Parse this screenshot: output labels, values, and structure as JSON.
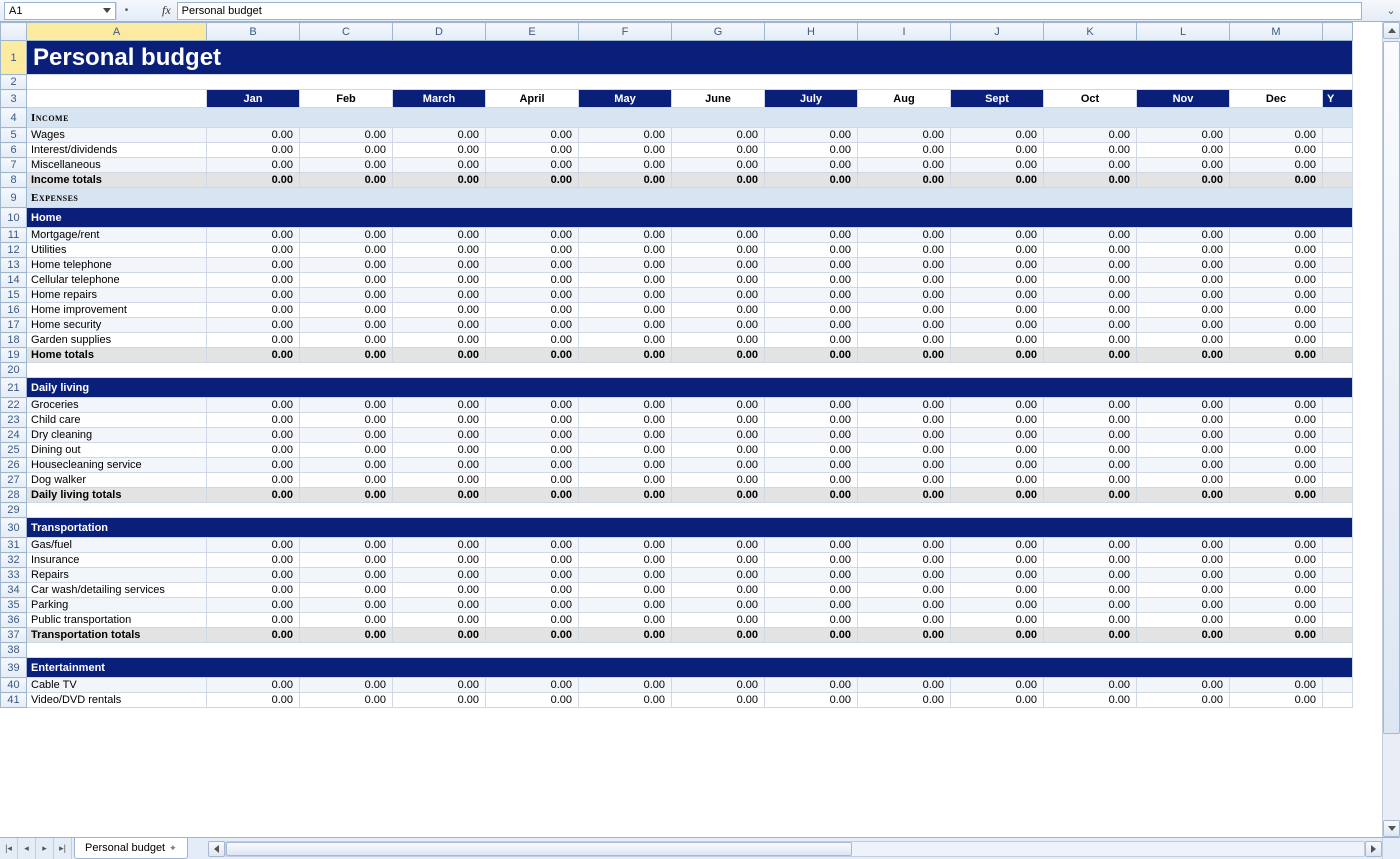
{
  "formula_bar": {
    "cell_ref": "A1",
    "fx_label": "fx",
    "value": "Personal budget"
  },
  "columns": [
    "A",
    "B",
    "C",
    "D",
    "E",
    "F",
    "G",
    "H",
    "I",
    "J",
    "K",
    "L",
    "M"
  ],
  "col_widths": {
    "row_hdr": 26,
    "A": 180,
    "other": 93
  },
  "title": "Personal budget",
  "months": [
    "Jan",
    "Feb",
    "March",
    "April",
    "May",
    "June",
    "July",
    "Aug",
    "Sept",
    "Oct",
    "Nov",
    "Dec"
  ],
  "month_alt_pattern": [
    true,
    false,
    true,
    false,
    true,
    false,
    true,
    false,
    true,
    false,
    true,
    false
  ],
  "sections": [
    {
      "type": "header",
      "row": 4,
      "label": "Income"
    },
    {
      "type": "data",
      "row": 5,
      "label": "Wages",
      "alt": false
    },
    {
      "type": "data",
      "row": 6,
      "label": "Interest/dividends",
      "alt": true
    },
    {
      "type": "data",
      "row": 7,
      "label": "Miscellaneous",
      "alt": false
    },
    {
      "type": "total",
      "row": 8,
      "label": "Income totals"
    },
    {
      "type": "header",
      "row": 9,
      "label": "Expenses"
    },
    {
      "type": "cat",
      "row": 10,
      "label": "Home"
    },
    {
      "type": "data",
      "row": 11,
      "label": "Mortgage/rent",
      "alt": false
    },
    {
      "type": "data",
      "row": 12,
      "label": "Utilities",
      "alt": true
    },
    {
      "type": "data",
      "row": 13,
      "label": "Home telephone",
      "alt": false
    },
    {
      "type": "data",
      "row": 14,
      "label": "Cellular telephone",
      "alt": true
    },
    {
      "type": "data",
      "row": 15,
      "label": "Home repairs",
      "alt": false
    },
    {
      "type": "data",
      "row": 16,
      "label": "Home improvement",
      "alt": true
    },
    {
      "type": "data",
      "row": 17,
      "label": "Home security",
      "alt": false
    },
    {
      "type": "data",
      "row": 18,
      "label": "Garden supplies",
      "alt": true
    },
    {
      "type": "total",
      "row": 19,
      "label": "Home totals"
    },
    {
      "type": "blank",
      "row": 20
    },
    {
      "type": "cat",
      "row": 21,
      "label": "Daily living"
    },
    {
      "type": "data",
      "row": 22,
      "label": "Groceries",
      "alt": false
    },
    {
      "type": "data",
      "row": 23,
      "label": "Child care",
      "alt": true
    },
    {
      "type": "data",
      "row": 24,
      "label": "Dry cleaning",
      "alt": false
    },
    {
      "type": "data",
      "row": 25,
      "label": "Dining out",
      "alt": true
    },
    {
      "type": "data",
      "row": 26,
      "label": "Housecleaning service",
      "alt": false
    },
    {
      "type": "data",
      "row": 27,
      "label": "Dog walker",
      "alt": true
    },
    {
      "type": "total",
      "row": 28,
      "label": "Daily living totals"
    },
    {
      "type": "blank",
      "row": 29
    },
    {
      "type": "cat",
      "row": 30,
      "label": "Transportation"
    },
    {
      "type": "data",
      "row": 31,
      "label": "Gas/fuel",
      "alt": false
    },
    {
      "type": "data",
      "row": 32,
      "label": "Insurance",
      "alt": true
    },
    {
      "type": "data",
      "row": 33,
      "label": "Repairs",
      "alt": false
    },
    {
      "type": "data",
      "row": 34,
      "label": "Car wash/detailing services",
      "alt": true
    },
    {
      "type": "data",
      "row": 35,
      "label": "Parking",
      "alt": false
    },
    {
      "type": "data",
      "row": 36,
      "label": "Public transportation",
      "alt": true
    },
    {
      "type": "total",
      "row": 37,
      "label": "Transportation totals"
    },
    {
      "type": "blank",
      "row": 38
    },
    {
      "type": "cat",
      "row": 39,
      "label": "Entertainment"
    },
    {
      "type": "data",
      "row": 40,
      "label": "Cable TV",
      "alt": false
    },
    {
      "type": "data",
      "row": 41,
      "label": "Video/DVD rentals",
      "alt": true
    }
  ],
  "zero_value": "0.00",
  "sheet_tab": "Personal budget",
  "colors": {
    "brand_blue": "#0a1f7a",
    "header_blue": "#d7e4f2",
    "row_shade": "#f2f5fa",
    "total_shade": "#e3e3e3",
    "grid_border": "#d0d7e5"
  },
  "row_heights": {
    "title": 34,
    "months": 18,
    "section": 20,
    "cat": 20,
    "default": 15
  },
  "selected_cell": "A1",
  "vscroll": {
    "thumb_top_pct": 2,
    "thumb_height_pct": 85
  },
  "hscroll": {
    "thumb_left_pct": 0,
    "thumb_width_pct": 55
  }
}
